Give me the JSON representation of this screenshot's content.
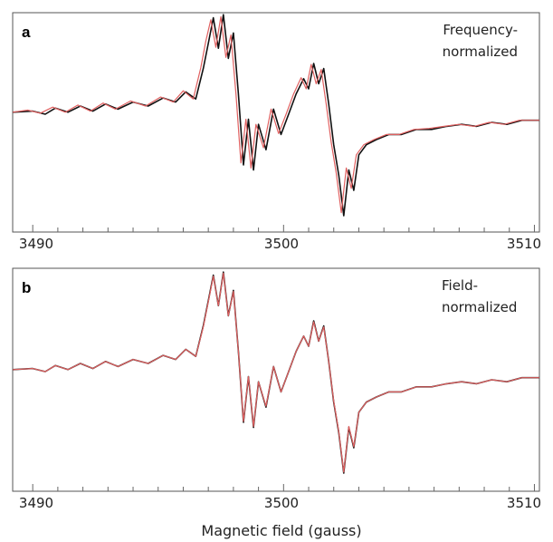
{
  "chart_data": [
    {
      "type": "line",
      "panel_label": "a",
      "annotation_lines": [
        "Frequency-",
        "normalized"
      ],
      "xlim": [
        3489.2,
        3510.2
      ],
      "x_ticks": [
        3490,
        3500,
        3510
      ],
      "x_tick_labels": [
        "3490",
        "3500",
        "3510"
      ],
      "minor_tick_step": 1,
      "xlabel": "",
      "ylabel": "",
      "y_ticks_shown": false,
      "grid": false,
      "series": [
        {
          "color": "#111111",
          "x": [
            3489.2,
            3490.0,
            3490.5,
            3490.9,
            3491.4,
            3491.9,
            3492.4,
            3492.9,
            3493.4,
            3494.0,
            3494.6,
            3495.2,
            3495.7,
            3496.1,
            3496.5,
            3496.8,
            3497.0,
            3497.2,
            3497.4,
            3497.6,
            3497.8,
            3498.0,
            3498.2,
            3498.4,
            3498.6,
            3498.8,
            3499.0,
            3499.3,
            3499.6,
            3499.9,
            3500.2,
            3500.5,
            3500.8,
            3501.0,
            3501.2,
            3501.4,
            3501.6,
            3501.8,
            3502.0,
            3502.2,
            3502.4,
            3502.6,
            3502.8,
            3503.0,
            3503.3,
            3503.7,
            3504.2,
            3504.7,
            3505.3,
            3505.9,
            3506.5,
            3507.1,
            3507.7,
            3508.3,
            3508.9,
            3509.5,
            3510.2
          ],
          "y": [
            0.02,
            0.03,
            0.0,
            0.06,
            0.02,
            0.08,
            0.03,
            0.1,
            0.05,
            0.12,
            0.08,
            0.16,
            0.12,
            0.22,
            0.15,
            0.45,
            0.7,
            0.95,
            0.65,
            0.98,
            0.55,
            0.8,
            0.2,
            -0.5,
            -0.05,
            -0.55,
            -0.1,
            -0.35,
            0.05,
            -0.2,
            0.0,
            0.2,
            0.35,
            0.25,
            0.5,
            0.3,
            0.45,
            0.1,
            -0.3,
            -0.6,
            -1.0,
            -0.55,
            -0.75,
            -0.4,
            -0.3,
            -0.25,
            -0.2,
            -0.2,
            -0.15,
            -0.15,
            -0.12,
            -0.1,
            -0.12,
            -0.08,
            -0.1,
            -0.06,
            -0.06
          ]
        },
        {
          "color": "#e06060",
          "x": [
            3489.2,
            3489.8,
            3490.3,
            3490.8,
            3491.3,
            3491.8,
            3492.3,
            3492.8,
            3493.3,
            3493.9,
            3494.5,
            3495.1,
            3495.6,
            3496.0,
            3496.4,
            3496.7,
            3496.9,
            3497.1,
            3497.3,
            3497.5,
            3497.7,
            3497.9,
            3498.1,
            3498.3,
            3498.5,
            3498.7,
            3498.9,
            3499.2,
            3499.5,
            3499.8,
            3500.1,
            3500.4,
            3500.7,
            3500.9,
            3501.1,
            3501.3,
            3501.5,
            3501.7,
            3501.9,
            3502.1,
            3502.3,
            3502.5,
            3502.7,
            3502.9,
            3503.2,
            3503.6,
            3504.1,
            3504.6,
            3505.2,
            3505.8,
            3506.4,
            3507.0,
            3507.6,
            3508.2,
            3508.8,
            3509.4,
            3510.2
          ],
          "y": [
            0.02,
            0.04,
            0.01,
            0.07,
            0.02,
            0.09,
            0.03,
            0.11,
            0.05,
            0.13,
            0.08,
            0.17,
            0.12,
            0.23,
            0.15,
            0.46,
            0.72,
            0.93,
            0.66,
            0.96,
            0.56,
            0.78,
            0.2,
            -0.48,
            -0.05,
            -0.53,
            -0.1,
            -0.33,
            0.05,
            -0.19,
            0.0,
            0.2,
            0.36,
            0.25,
            0.49,
            0.3,
            0.44,
            0.1,
            -0.28,
            -0.58,
            -0.97,
            -0.53,
            -0.73,
            -0.4,
            -0.3,
            -0.25,
            -0.2,
            -0.2,
            -0.15,
            -0.14,
            -0.12,
            -0.1,
            -0.12,
            -0.08,
            -0.1,
            -0.06,
            -0.06
          ]
        }
      ]
    },
    {
      "type": "line",
      "panel_label": "b",
      "annotation_lines": [
        "Field-",
        "normalized"
      ],
      "xlim": [
        3489.2,
        3510.2
      ],
      "x_ticks": [
        3490,
        3500,
        3510
      ],
      "x_tick_labels": [
        "3490",
        "3500",
        "3510"
      ],
      "minor_tick_step": 1,
      "xlabel": "Magnetic field (gauss)",
      "ylabel": "",
      "y_ticks_shown": false,
      "grid": false,
      "series": [
        {
          "color": "#111111",
          "x": [
            3489.2,
            3490.0,
            3490.5,
            3490.9,
            3491.4,
            3491.9,
            3492.4,
            3492.9,
            3493.4,
            3494.0,
            3494.6,
            3495.2,
            3495.7,
            3496.1,
            3496.5,
            3496.8,
            3497.0,
            3497.2,
            3497.4,
            3497.6,
            3497.8,
            3498.0,
            3498.2,
            3498.4,
            3498.6,
            3498.8,
            3499.0,
            3499.3,
            3499.6,
            3499.9,
            3500.2,
            3500.5,
            3500.8,
            3501.0,
            3501.2,
            3501.4,
            3501.6,
            3501.8,
            3502.0,
            3502.2,
            3502.4,
            3502.6,
            3502.8,
            3503.0,
            3503.3,
            3503.7,
            3504.2,
            3504.7,
            3505.3,
            3505.9,
            3506.5,
            3507.1,
            3507.7,
            3508.3,
            3508.9,
            3509.5,
            3510.2
          ],
          "y": [
            0.02,
            0.03,
            0.0,
            0.06,
            0.02,
            0.08,
            0.03,
            0.1,
            0.05,
            0.12,
            0.08,
            0.16,
            0.12,
            0.22,
            0.15,
            0.45,
            0.7,
            0.95,
            0.65,
            0.98,
            0.55,
            0.8,
            0.2,
            -0.5,
            -0.05,
            -0.55,
            -0.1,
            -0.35,
            0.05,
            -0.2,
            0.0,
            0.2,
            0.35,
            0.25,
            0.5,
            0.3,
            0.45,
            0.1,
            -0.3,
            -0.6,
            -1.0,
            -0.55,
            -0.75,
            -0.4,
            -0.3,
            -0.25,
            -0.2,
            -0.2,
            -0.15,
            -0.15,
            -0.12,
            -0.1,
            -0.12,
            -0.08,
            -0.1,
            -0.06,
            -0.06
          ]
        },
        {
          "color": "#e06060",
          "x": [
            3489.2,
            3490.0,
            3490.5,
            3490.9,
            3491.4,
            3491.9,
            3492.4,
            3492.9,
            3493.4,
            3494.0,
            3494.6,
            3495.2,
            3495.7,
            3496.1,
            3496.5,
            3496.8,
            3497.0,
            3497.2,
            3497.4,
            3497.6,
            3497.8,
            3498.0,
            3498.2,
            3498.4,
            3498.6,
            3498.8,
            3499.0,
            3499.3,
            3499.6,
            3499.9,
            3500.2,
            3500.5,
            3500.8,
            3501.0,
            3501.2,
            3501.4,
            3501.6,
            3501.8,
            3502.0,
            3502.2,
            3502.4,
            3502.6,
            3502.8,
            3503.0,
            3503.3,
            3503.7,
            3504.2,
            3504.7,
            3505.3,
            3505.9,
            3506.5,
            3507.1,
            3507.7,
            3508.3,
            3508.9,
            3509.5,
            3510.2
          ],
          "y": [
            0.02,
            0.03,
            0.0,
            0.06,
            0.02,
            0.08,
            0.03,
            0.1,
            0.05,
            0.12,
            0.08,
            0.16,
            0.12,
            0.22,
            0.15,
            0.44,
            0.69,
            0.94,
            0.65,
            0.97,
            0.55,
            0.79,
            0.2,
            -0.49,
            -0.05,
            -0.54,
            -0.1,
            -0.34,
            0.05,
            -0.2,
            0.0,
            0.2,
            0.35,
            0.25,
            0.49,
            0.3,
            0.44,
            0.1,
            -0.29,
            -0.59,
            -0.99,
            -0.54,
            -0.74,
            -0.4,
            -0.3,
            -0.25,
            -0.2,
            -0.2,
            -0.15,
            -0.15,
            -0.12,
            -0.1,
            -0.12,
            -0.08,
            -0.1,
            -0.06,
            -0.06
          ]
        }
      ]
    }
  ]
}
